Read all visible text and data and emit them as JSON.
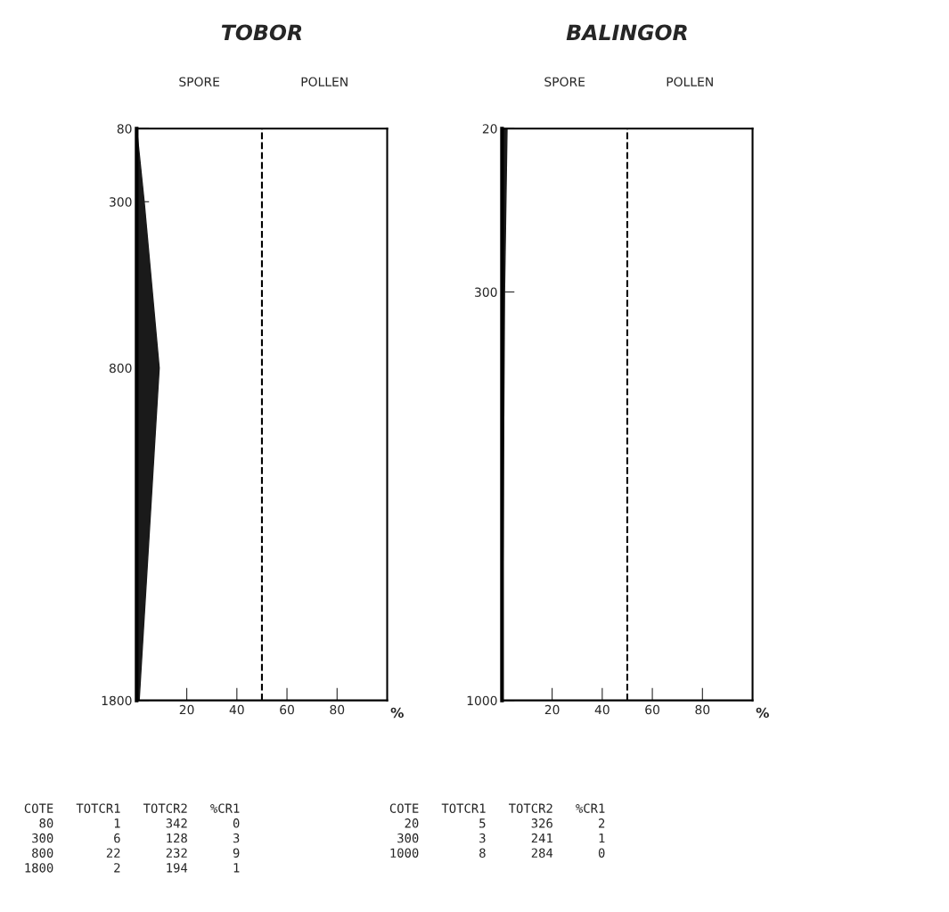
{
  "chart_data": [
    {
      "type": "area",
      "title": "TOBOR",
      "orientation": "horizontal",
      "xlabel": "%",
      "x": [
        80,
        300,
        800,
        1800
      ],
      "series": [
        {
          "color": "#1a1a1a",
          "values": [
            0,
            3,
            9,
            1
          ]
        }
      ],
      "xlim": [
        0,
        100
      ],
      "xticks": [
        20,
        40,
        60,
        80
      ],
      "ylim": [
        1800,
        80
      ],
      "yticks": [
        80,
        300,
        800,
        1800
      ],
      "ref_lines": [
        {
          "axis": "x",
          "value": 50,
          "line_style": "dashed"
        }
      ],
      "grid": false,
      "legend": false,
      "annotations": [
        "SPORE",
        "POLLEN",
        "COTE   TOTCR1   TOTCR2   %CR1",
        "  80        1      342      0",
        " 300        6      128      3",
        " 800       22      232      9",
        "1800        2      194      1"
      ]
    },
    {
      "type": "area",
      "title": "BALINGOR",
      "orientation": "horizontal",
      "xlabel": "%",
      "x": [
        20,
        300,
        1000
      ],
      "series": [
        {
          "color": "#1a1a1a",
          "values": [
            2,
            1,
            0
          ]
        }
      ],
      "xlim": [
        0,
        100
      ],
      "xticks": [
        20,
        40,
        60,
        80
      ],
      "ylim": [
        1000,
        20
      ],
      "yticks": [
        20,
        300,
        1000
      ],
      "ref_lines": [
        {
          "axis": "x",
          "value": 50,
          "line_style": "dashed"
        }
      ],
      "grid": false,
      "legend": false,
      "annotations": [
        "SPORE",
        "POLLEN",
        "COTE   TOTCR1   TOTCR2   %CR1",
        "  20        5      326      2",
        " 300        3      241      1",
        "1000        8      284      0"
      ]
    }
  ]
}
